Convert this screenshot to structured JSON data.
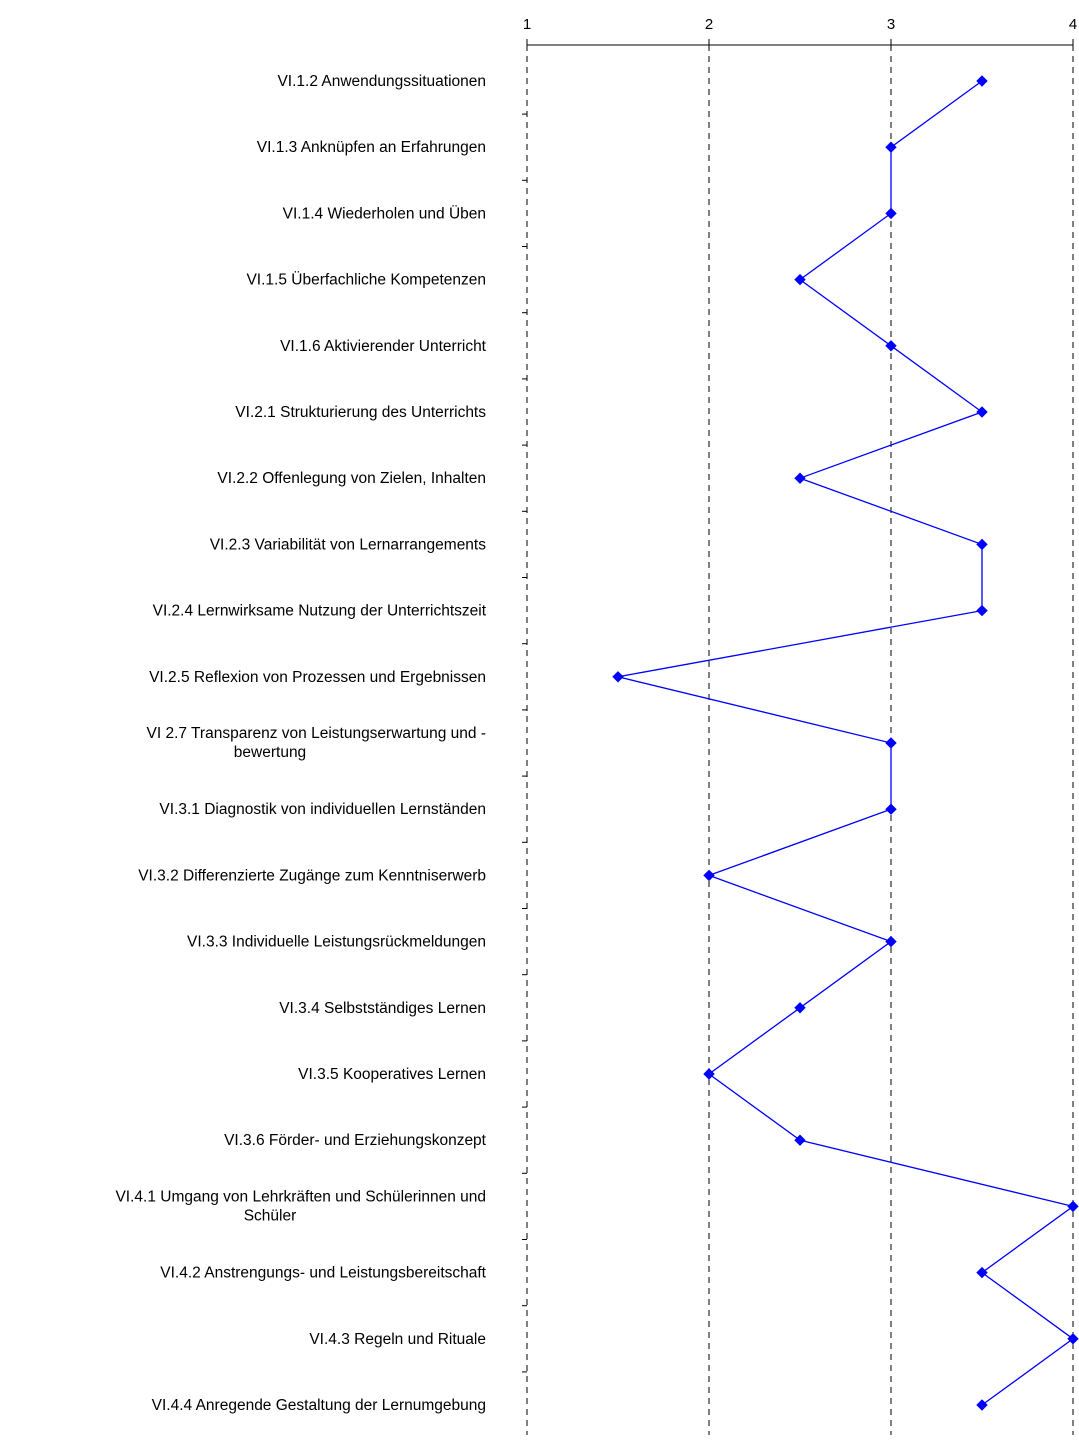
{
  "chart_data": {
    "type": "line",
    "orientation": "horizontal-profile",
    "title": "",
    "xlabel": "",
    "ylabel": "",
    "xlim": [
      1,
      4
    ],
    "x_ticks": [
      "1",
      "2",
      "3",
      "4"
    ],
    "grid": "vertical-dashed",
    "legend": "none",
    "series_color": "#0000ff",
    "marker": "diamond",
    "categories": [
      [
        "VI.1.2 Anwendungssituationen"
      ],
      [
        "VI.1.3 Anknüpfen an Erfahrungen"
      ],
      [
        "VI.1.4 Wiederholen und Üben"
      ],
      [
        "VI.1.5 Überfachliche Kompetenzen"
      ],
      [
        "VI.1.6 Aktivierender Unterricht"
      ],
      [
        "VI.2.1 Strukturierung des Unterrichts"
      ],
      [
        "VI.2.2 Offenlegung von Zielen, Inhalten"
      ],
      [
        "VI.2.3 Variabilität von Lernarrangements"
      ],
      [
        "VI.2.4 Lernwirksame Nutzung der Unterrichtszeit"
      ],
      [
        "VI.2.5 Reflexion von Prozessen und Ergebnissen"
      ],
      [
        "VI 2.7 Transparenz  von Leistungserwartung und -",
        "bewertung"
      ],
      [
        "VI.3.1 Diagnostik von individuellen Lernständen"
      ],
      [
        "VI.3.2 Differenzierte Zugänge zum Kenntniserwerb"
      ],
      [
        "VI.3.3 Individuelle Leistungsrückmeldungen"
      ],
      [
        "VI.3.4 Selbstständiges Lernen"
      ],
      [
        "VI.3.5 Kooperatives Lernen"
      ],
      [
        "VI.3.6 Förder- und Erziehungskonzept"
      ],
      [
        "VI.4.1 Umgang von Lehrkräften und Schülerinnen und",
        "Schüler"
      ],
      [
        "VI.4.2 Anstrengungs- und Leistungsbereitschaft"
      ],
      [
        "VI.4.3 Regeln und Rituale"
      ],
      [
        "VI.4.4 Anregende Gestaltung der Lernumgebung"
      ]
    ],
    "values": [
      3.5,
      3.0,
      3.0,
      2.5,
      3.0,
      3.5,
      2.5,
      3.5,
      3.5,
      1.5,
      3.0,
      3.0,
      2.0,
      3.0,
      2.5,
      2.0,
      2.5,
      4.0,
      3.5,
      4.0,
      3.5
    ]
  }
}
